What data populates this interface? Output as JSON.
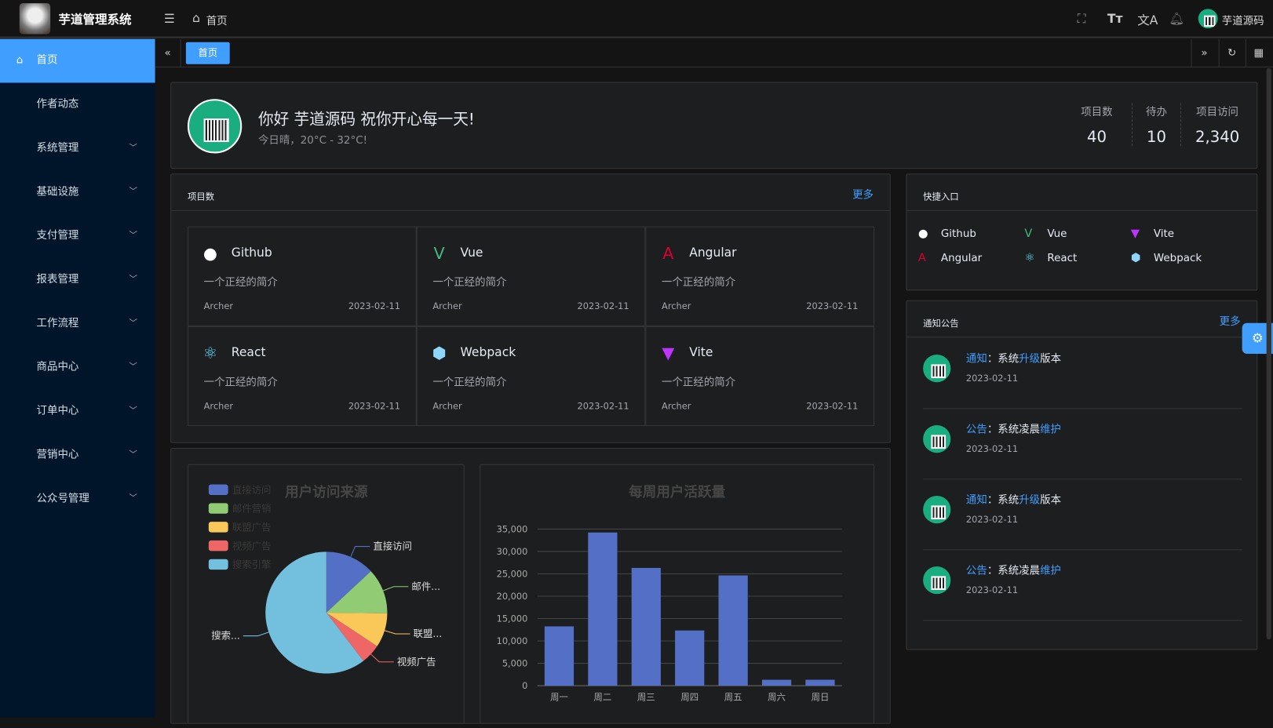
{
  "header": {
    "app_title": "芋道管理系统",
    "breadcrumb": "首页",
    "user_name": "芋道源码",
    "icons": [
      "menu-fold-icon",
      "home-icon",
      "fullscreen-icon",
      "font-size-icon",
      "translate-icon",
      "bell-icon"
    ]
  },
  "sidebar": {
    "items": [
      {
        "label": "首页",
        "active": true
      },
      {
        "label": "作者动态"
      },
      {
        "label": "系统管理",
        "expandable": true
      },
      {
        "label": "基础设施",
        "expandable": true
      },
      {
        "label": "支付管理",
        "expandable": true
      },
      {
        "label": "报表管理",
        "expandable": true
      },
      {
        "label": "工作流程",
        "expandable": true
      },
      {
        "label": "商品中心",
        "expandable": true
      },
      {
        "label": "订单中心",
        "expandable": true
      },
      {
        "label": "营销中心",
        "expandable": true
      },
      {
        "label": "公众号管理",
        "expandable": true
      }
    ]
  },
  "tabs": {
    "items": [
      {
        "label": "首页",
        "active": true
      }
    ]
  },
  "welcome": {
    "greeting": "你好 芋道源码 祝你开心每一天!",
    "weather": "今日晴，20°C - 32°C!",
    "stats": [
      {
        "label": "项目数",
        "value": "40"
      },
      {
        "label": "待办",
        "value": "10"
      },
      {
        "label": "项目访问",
        "value": "2,340"
      }
    ]
  },
  "projects": {
    "title": "项目数",
    "more": "更多",
    "items": [
      {
        "name": "Github",
        "desc": "一个正经的简介",
        "author": "Archer",
        "date": "2023-02-11",
        "icon": "github-icon",
        "color": "#ffffff"
      },
      {
        "name": "Vue",
        "desc": "一个正经的简介",
        "author": "Archer",
        "date": "2023-02-11",
        "icon": "vue-icon",
        "color": "#42b883"
      },
      {
        "name": "Angular",
        "desc": "一个正经的简介",
        "author": "Archer",
        "date": "2023-02-11",
        "icon": "angular-icon",
        "color": "#dd0031"
      },
      {
        "name": "React",
        "desc": "一个正经的简介",
        "author": "Archer",
        "date": "2023-02-11",
        "icon": "react-icon",
        "color": "#61dafb"
      },
      {
        "name": "Webpack",
        "desc": "一个正经的简介",
        "author": "Archer",
        "date": "2023-02-11",
        "icon": "webpack-icon",
        "color": "#8ed6fb"
      },
      {
        "name": "Vite",
        "desc": "一个正经的简介",
        "author": "Archer",
        "date": "2023-02-11",
        "icon": "vite-icon",
        "color": "#bd34fe"
      }
    ]
  },
  "shortcuts": {
    "title": "快捷入口",
    "items": [
      {
        "name": "Github",
        "icon": "github-icon"
      },
      {
        "name": "Vue",
        "icon": "vue-icon"
      },
      {
        "name": "Vite",
        "icon": "vite-icon"
      },
      {
        "name": "Angular",
        "icon": "angular-icon"
      },
      {
        "name": "React",
        "icon": "react-icon"
      },
      {
        "name": "Webpack",
        "icon": "webpack-icon"
      }
    ]
  },
  "notices": {
    "title": "通知公告",
    "more": "更多",
    "items": [
      {
        "type": "通知",
        "sep": "：",
        "pre": "系统",
        "hl": "升级",
        "post": "版本",
        "date": "2023-02-11"
      },
      {
        "type": "公告",
        "sep": "：",
        "pre": "系统凌晨",
        "hl": "维护",
        "post": "",
        "date": "2023-02-11"
      },
      {
        "type": "通知",
        "sep": "：",
        "pre": "系统",
        "hl": "升级",
        "post": "版本",
        "date": "2023-02-11"
      },
      {
        "type": "公告",
        "sep": "：",
        "pre": "系统凌晨",
        "hl": "维护",
        "post": "",
        "date": "2023-02-11"
      }
    ]
  },
  "chart_data": [
    {
      "type": "pie",
      "title": "用户访问来源",
      "legend_position": "top-left",
      "categories": [
        "直接访问",
        "邮件营销",
        "联盟广告",
        "视频广告",
        "搜索引擎"
      ],
      "labels": [
        "直接访问",
        "邮件...",
        "联盟...",
        "视频广告",
        "搜索..."
      ],
      "values": [
        335,
        310,
        234,
        135,
        1548
      ],
      "colors": [
        "#5470c6",
        "#91cc75",
        "#fac858",
        "#ee6666",
        "#73c0de"
      ]
    },
    {
      "type": "bar",
      "title": "每周用户活跃量",
      "categories": [
        "周一",
        "周二",
        "周三",
        "周四",
        "周五",
        "周六",
        "周日"
      ],
      "values": [
        13253,
        34235,
        26321,
        12340,
        24643,
        1322,
        1324
      ],
      "ylim": [
        0,
        35000
      ],
      "yticks": [
        "0",
        "5,000",
        "10,000",
        "15,000",
        "20,000",
        "25,000",
        "30,000",
        "35,000"
      ],
      "grid": true,
      "color": "#5470c6"
    }
  ]
}
